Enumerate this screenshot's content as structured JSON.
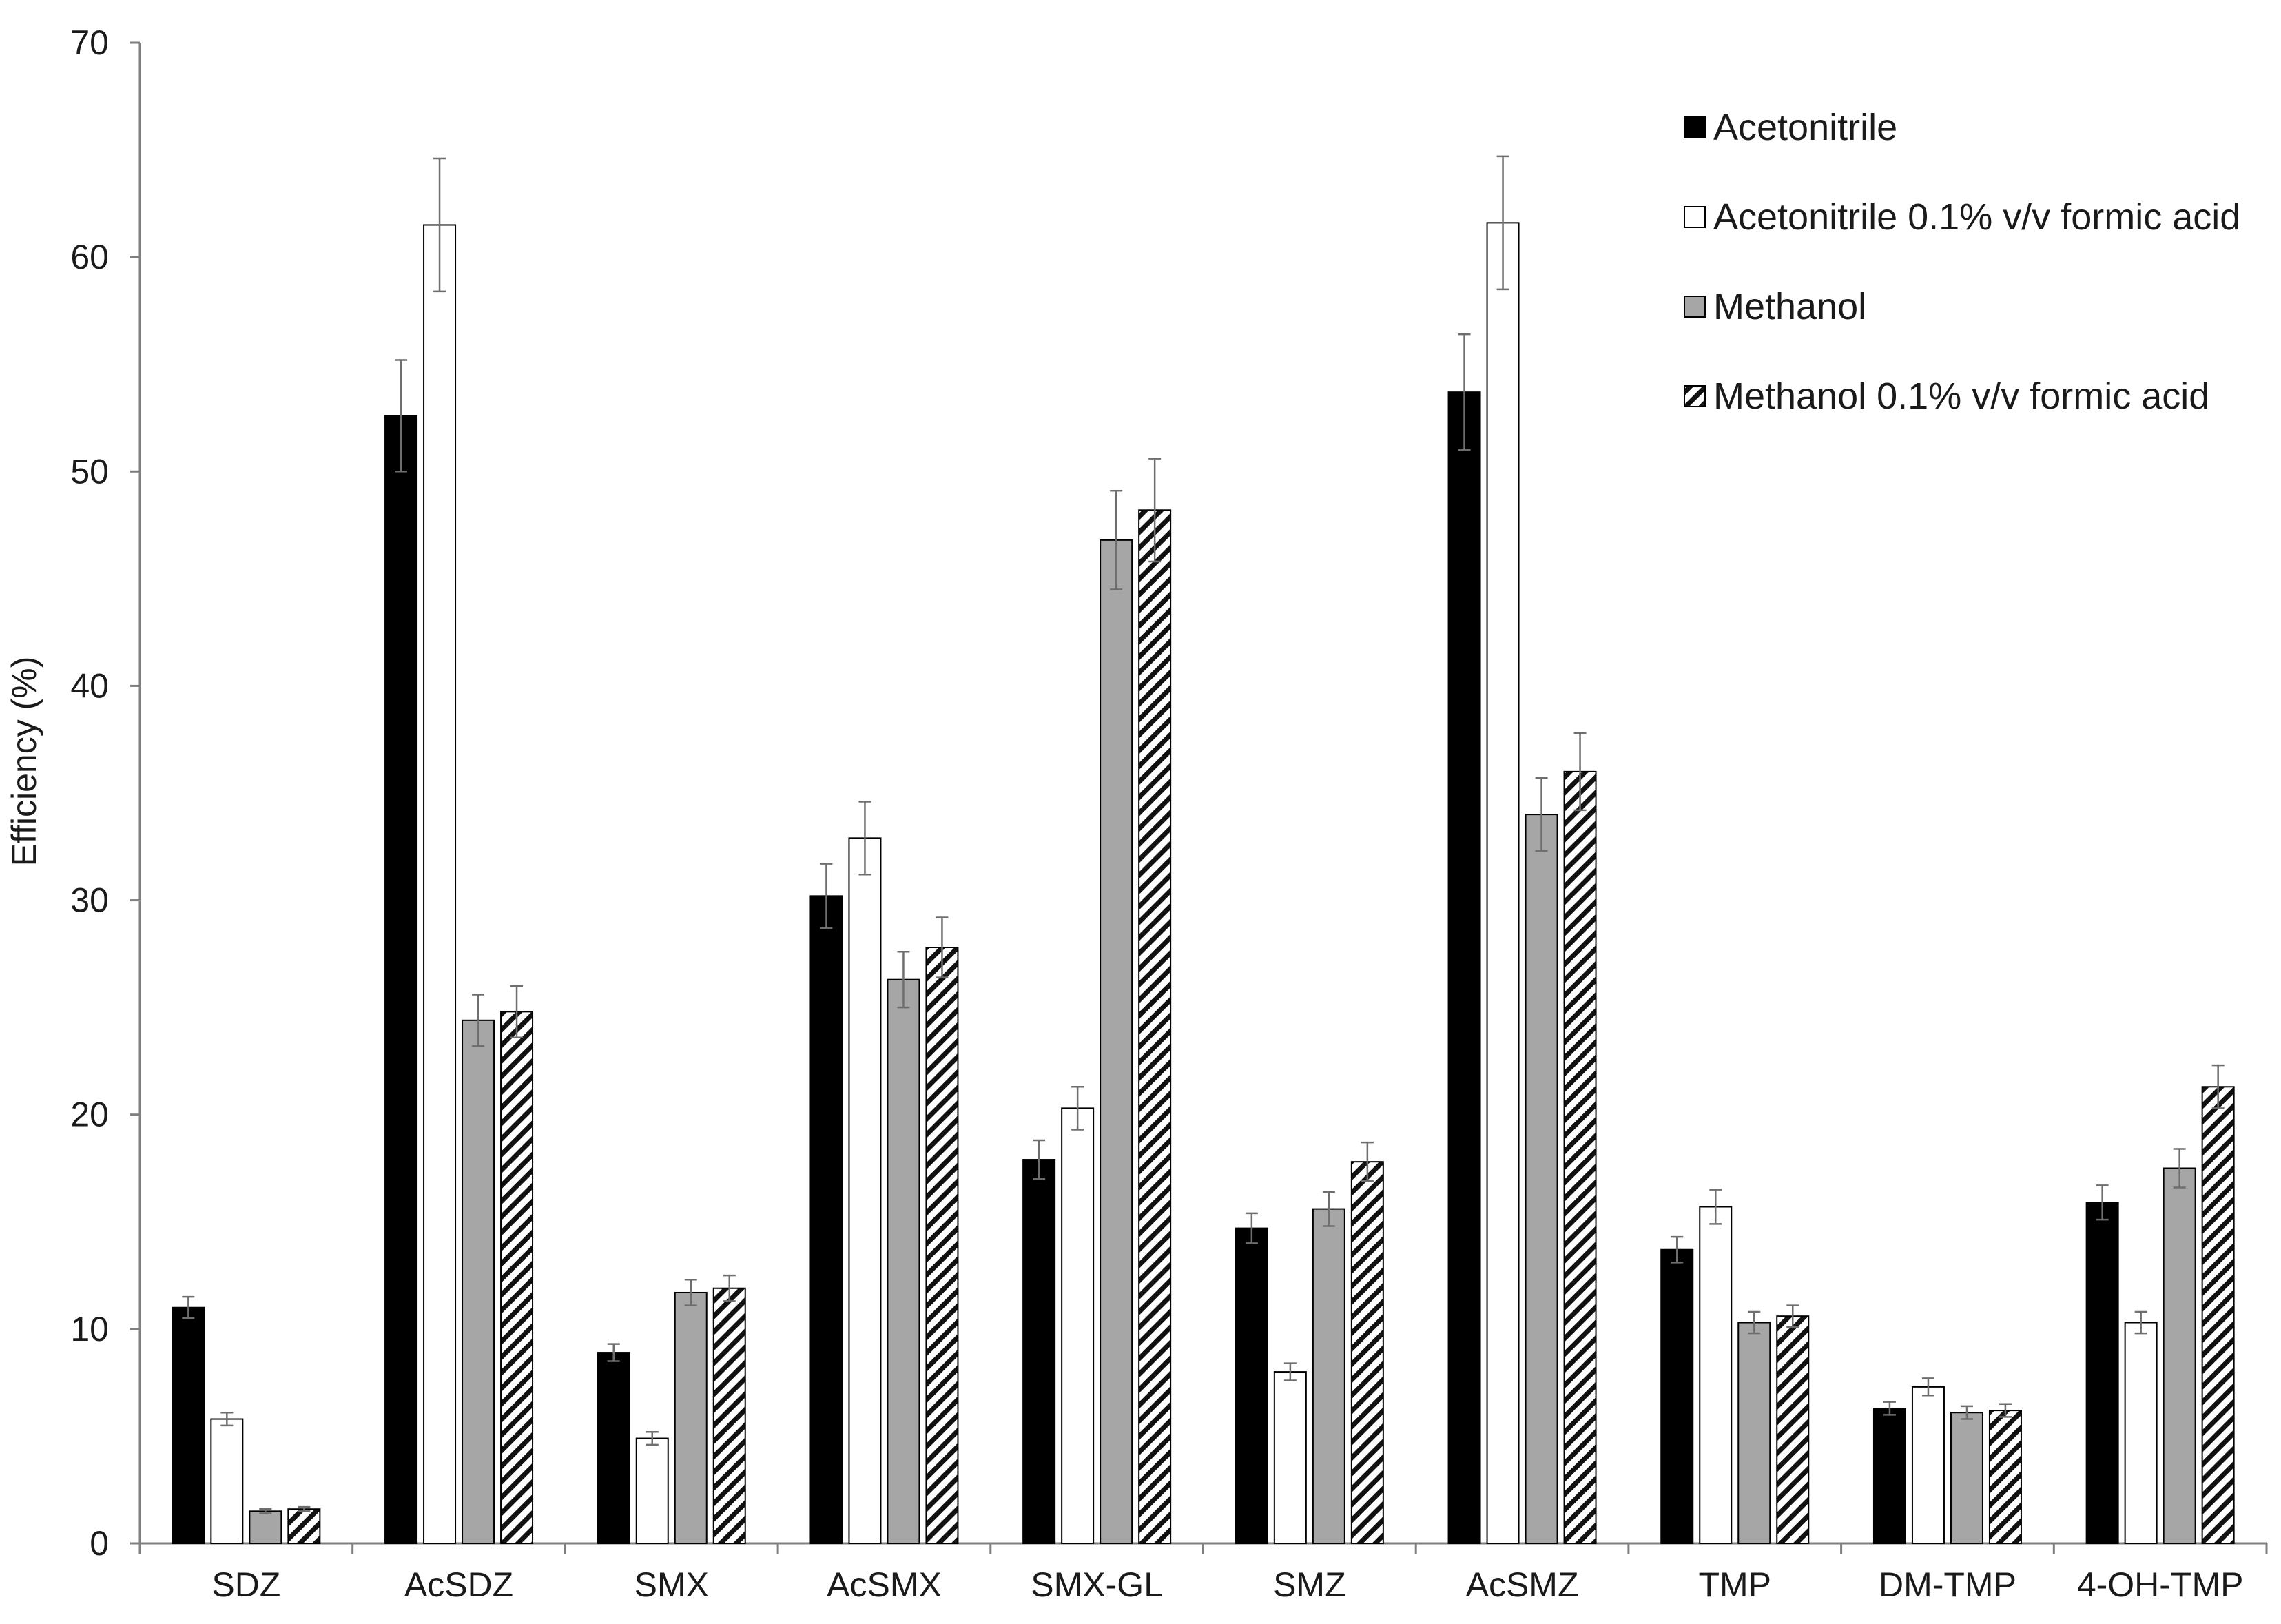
{
  "chart_data": {
    "type": "bar",
    "title": "",
    "xlabel": "",
    "ylabel": "Efficiency (%)",
    "ylim": [
      0,
      70
    ],
    "yticks": [
      0,
      10,
      20,
      30,
      40,
      50,
      60,
      70
    ],
    "grid": false,
    "legend_position": "top-right",
    "categories": [
      "SDZ",
      "AcSDZ",
      "SMX",
      "AcSMX",
      "SMX-GL",
      "SMZ",
      "AcSMZ",
      "TMP",
      "DM-TMP",
      "4-OH-TMP"
    ],
    "series": [
      {
        "name": "Acetonitrile",
        "style": "solid-black",
        "values": [
          11.0,
          52.6,
          8.9,
          30.2,
          17.9,
          14.7,
          53.7,
          13.7,
          6.3,
          15.9
        ],
        "errors": [
          0.5,
          2.6,
          0.4,
          1.5,
          0.9,
          0.7,
          2.7,
          0.6,
          0.3,
          0.8
        ]
      },
      {
        "name": "Acetonitrile 0.1% v/v formic acid",
        "style": "white",
        "values": [
          5.8,
          61.5,
          4.9,
          32.9,
          20.3,
          8.0,
          61.6,
          15.7,
          7.3,
          10.3
        ],
        "errors": [
          0.3,
          3.1,
          0.3,
          1.7,
          1.0,
          0.4,
          3.1,
          0.8,
          0.4,
          0.5
        ]
      },
      {
        "name": "Methanol",
        "style": "solid-gray",
        "values": [
          1.5,
          24.4,
          11.7,
          26.3,
          46.8,
          15.6,
          34.0,
          10.3,
          6.1,
          17.5
        ],
        "errors": [
          0.1,
          1.2,
          0.6,
          1.3,
          2.3,
          0.8,
          1.7,
          0.5,
          0.3,
          0.9
        ]
      },
      {
        "name": "Methanol 0.1% v/v formic acid",
        "style": "hatched",
        "values": [
          1.6,
          24.8,
          11.9,
          27.8,
          48.2,
          17.8,
          36.0,
          10.6,
          6.2,
          21.3
        ],
        "errors": [
          0.1,
          1.2,
          0.6,
          1.4,
          2.4,
          0.9,
          1.8,
          0.5,
          0.3,
          1.0
        ]
      }
    ]
  }
}
